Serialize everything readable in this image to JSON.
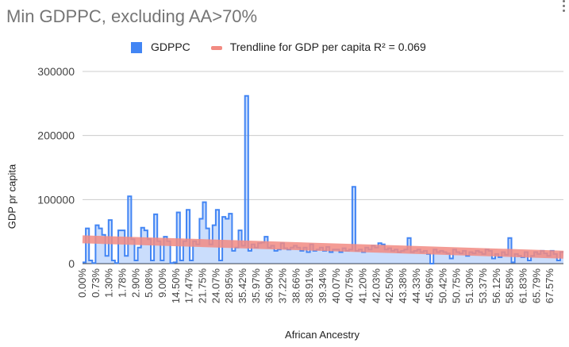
{
  "chart_data": {
    "type": "area",
    "title": "Min GDPPC, excluding AA>70%",
    "xlabel": "African Ancestry",
    "ylabel": "GDP pr capita",
    "ylim": [
      0,
      300000
    ],
    "yticks": [
      "300000",
      "200000",
      "100000",
      "0"
    ],
    "ytick_values": [
      300000,
      200000,
      100000,
      0
    ],
    "grid": true,
    "legend_position": "top",
    "x_tick_labels": [
      "0.00%",
      "0.73%",
      "1.30%",
      "1.78%",
      "2.90%",
      "5.08%",
      "9.00%",
      "14.50%",
      "17.47%",
      "21.75%",
      "24.07%",
      "28.95%",
      "35.42%",
      "35.97%",
      "36.90%",
      "37.22%",
      "38.66%",
      "38.91%",
      "39.34%",
      "40.07%",
      "40.75%",
      "41.20%",
      "42.03%",
      "42.50%",
      "43.38%",
      "44.33%",
      "45.96%",
      "50.42%",
      "50.75%",
      "51.30%",
      "53.37%",
      "56.12%",
      "58.58%",
      "61.83%",
      "65.79%",
      "67.57%"
    ],
    "series": [
      {
        "name": "GDPPC",
        "color": "#4285f4",
        "values": [
          2000,
          55000,
          5000,
          1000,
          60000,
          55000,
          45000,
          12000,
          68000,
          5000,
          1000,
          52000,
          52000,
          12000,
          105000,
          38000,
          5000,
          25000,
          56000,
          52000,
          38000,
          5000,
          77000,
          35000,
          5000,
          42000,
          35000,
          1000,
          2000,
          80000,
          5000,
          35000,
          84000,
          5000,
          35000,
          30000,
          70000,
          96000,
          55000,
          30000,
          60000,
          84000,
          5000,
          73000,
          70000,
          78000,
          20000,
          25000,
          52000,
          28000,
          262000,
          20000,
          30000,
          25000,
          32000,
          33000,
          42000,
          25000,
          28000,
          20000,
          22000,
          32000,
          24000,
          22000,
          25000,
          28000,
          25000,
          20000,
          25000,
          18000,
          30000,
          20000,
          22000,
          25000,
          20000,
          26000,
          18000,
          22000,
          22000,
          18000,
          24000,
          20000,
          22000,
          120000,
          20000,
          22000,
          18000,
          25000,
          22000,
          28000,
          25000,
          32000,
          30000,
          22000,
          24000,
          20000,
          22000,
          18000,
          20000,
          22000,
          40000,
          18000,
          20000,
          22000,
          18000,
          20000,
          15000,
          0,
          22000,
          18000,
          20000,
          18000,
          16000,
          8000,
          22000,
          18000,
          16000,
          20000,
          12000,
          18000,
          16000,
          20000,
          18000,
          15000,
          22000,
          20000,
          8000,
          15000,
          10000,
          18000,
          14000,
          40000,
          2000,
          15000,
          12000,
          10000,
          18000,
          5000,
          12000,
          18000,
          15000,
          20000,
          16000,
          12000,
          20000,
          15000,
          5000,
          18000
        ]
      },
      {
        "name": "Trendline for GDP per capita R² = 0.069",
        "color": "#f28b82",
        "type": "linear-trend",
        "start": 38000,
        "end": 14000
      }
    ]
  }
}
